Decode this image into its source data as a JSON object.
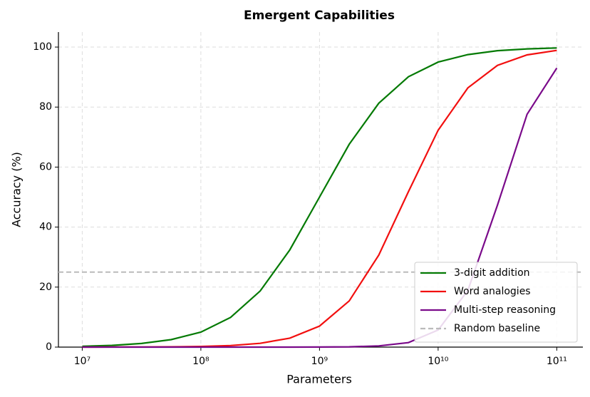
{
  "chart_data": {
    "type": "line",
    "title": "Emergent Capabilities",
    "x_label": "Parameters",
    "y_label": "Accuracy (%)",
    "log_x": true,
    "grid": true,
    "legend": "lower right",
    "x": [
      10000000,
      17800000,
      31600000,
      56200000,
      100000000,
      178000000,
      316000000,
      562000000,
      1000000000,
      1780000000,
      3160000000,
      5620000000,
      10000000000,
      17800000000,
      31600000000,
      56200000000,
      100000000000
    ],
    "series": [
      {
        "name": "3-digit addition",
        "color": "#047a04",
        "values": [
          0.28,
          0.58,
          1.2,
          2.5,
          5.0,
          9.9,
          18.7,
          32.4,
          50,
          67.6,
          81.3,
          90.1,
          95.0,
          97.5,
          98.8,
          99.4,
          99.7
        ]
      },
      {
        "name": "Word analogies",
        "color": "#f20f0f",
        "values": [
          0,
          0.02,
          0.04,
          0.09,
          0.21,
          0.52,
          1.25,
          3.0,
          7.0,
          15.4,
          30.7,
          51.8,
          72.3,
          86.4,
          93.9,
          97.4,
          98.9
        ]
      },
      {
        "name": "Multi-step reasoning",
        "color": "#7a0a8a",
        "values": [
          0,
          0,
          0,
          0,
          0,
          0,
          0,
          0,
          0.03,
          0.1,
          0.4,
          1.5,
          5.7,
          18.9,
          47.3,
          77.6,
          93.0
        ]
      }
    ],
    "baseline": {
      "name": "Random baseline",
      "value": 25,
      "color": "#bbbbbb"
    },
    "xlim": [
      6300000,
      166000000000
    ],
    "ylim": [
      0,
      105
    ],
    "xticks": [
      {
        "value": 10000000,
        "label": "10⁷"
      },
      {
        "value": 100000000,
        "label": "10⁸"
      },
      {
        "value": 1000000000,
        "label": "10⁹"
      },
      {
        "value": 10000000000,
        "label": "10¹⁰"
      },
      {
        "value": 100000000000,
        "label": "10¹¹"
      }
    ],
    "yticks": [
      0,
      20,
      40,
      60,
      80,
      100
    ]
  }
}
